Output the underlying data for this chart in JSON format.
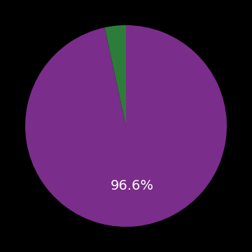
{
  "values": [
    96.6,
    3.4
  ],
  "colors": [
    "#7b2d8b",
    "#2d7d3a"
  ],
  "label_text": "96.6%",
  "label_color": "#ffffff",
  "label_fontsize": 14,
  "background_color": "#000000",
  "startangle": 90,
  "figsize": [
    3.6,
    3.6
  ],
  "dpi": 100
}
